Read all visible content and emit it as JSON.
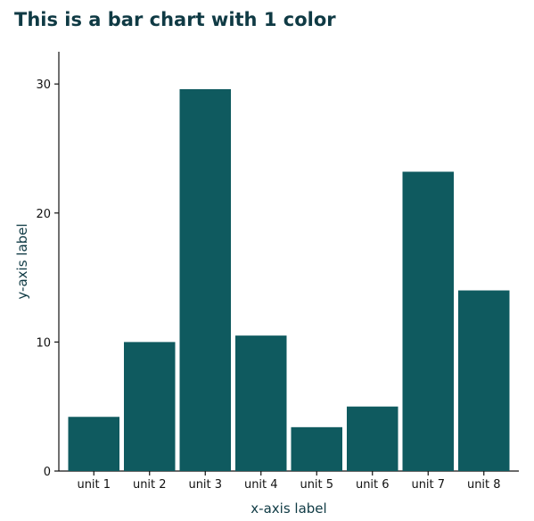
{
  "chart_data": {
    "type": "bar",
    "title": "This is a bar chart with 1 color",
    "xlabel": "x-axis label",
    "ylabel": "y-axis label",
    "categories": [
      "unit 1",
      "unit 2",
      "unit 3",
      "unit 4",
      "unit 5",
      "unit 6",
      "unit 7",
      "unit 8"
    ],
    "values": [
      4.2,
      10.0,
      29.6,
      10.5,
      3.4,
      5.0,
      23.2,
      14.0
    ],
    "ylim": [
      0,
      32.5
    ],
    "yticks": [
      0,
      10,
      20,
      30
    ],
    "bar_color": "#0f5a5f",
    "grid": false,
    "legend": "none"
  }
}
